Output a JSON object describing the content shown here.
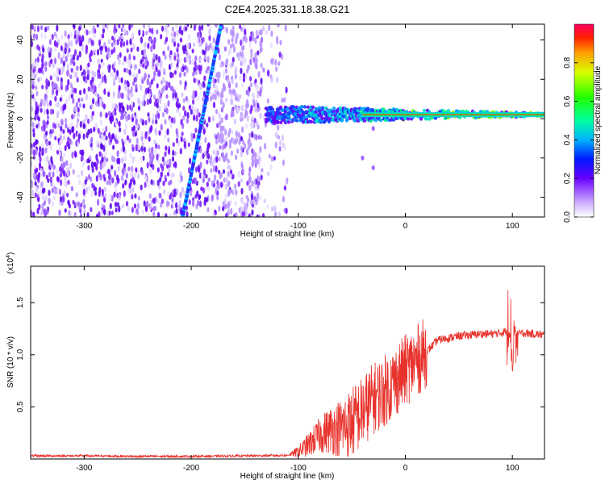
{
  "title": "C2E4.2025.331.18.38.G21",
  "chart_data": [
    {
      "type": "heatmap",
      "name": "spectrogram",
      "title": "C2E4.2025.331.18.38.G21",
      "xlabel": "Height of straight line (km)",
      "ylabel": "Frequency (Hz)",
      "xlim": [
        -350,
        130
      ],
      "ylim": [
        -50,
        48
      ],
      "x_ticks": [
        -300,
        -200,
        -100,
        0,
        100
      ],
      "x_tick_labels": [
        "-300",
        "-200",
        "-100",
        "0",
        "100"
      ],
      "y_ticks": [
        -40,
        -20,
        0,
        20,
        40
      ],
      "y_tick_labels": [
        "-40",
        "-20",
        "0",
        "20",
        "40"
      ],
      "colorbar": {
        "label": "Normalized spectral amplitude",
        "range": [
          0.0,
          1.0
        ],
        "ticks": [
          0.0,
          0.2,
          0.4,
          0.6,
          0.8
        ],
        "tick_labels": [
          "0.0",
          "0.2",
          "0.4",
          "0.6",
          "0.8"
        ]
      },
      "features": {
        "noise_region_x": [
          -350,
          -110
        ],
        "diagonal_streak": {
          "x_start": -208,
          "y_start": -50,
          "x_end": -172,
          "y_end": 48
        },
        "carrier_line": {
          "x_start": -130,
          "x_end": 130,
          "freq_hz": 2
        }
      }
    },
    {
      "type": "line",
      "name": "snr",
      "xlabel": "Height of straight line (km)",
      "ylabel": "SNR (10 * v/v)",
      "y_scale_label": "(x10",
      "y_scale_exponent": "4",
      "y_scale_suffix": ")",
      "xlim": [
        -350,
        130
      ],
      "ylim": [
        0,
        18500
      ],
      "x_ticks": [
        -300,
        -200,
        -100,
        0,
        100
      ],
      "x_tick_labels": [
        "-300",
        "-200",
        "-100",
        "0",
        "100"
      ],
      "y_ticks": [
        5000,
        10000,
        15000
      ],
      "y_tick_labels": [
        "0.5",
        "1.0",
        "1.5"
      ],
      "color": "#e8322c",
      "series": [
        {
          "name": "SNR",
          "x": [
            -350,
            -300,
            -250,
            -200,
            -150,
            -110,
            -100,
            -90,
            -80,
            -70,
            -60,
            -50,
            -40,
            -30,
            -20,
            -10,
            -5,
            0,
            10,
            20,
            30,
            40,
            50,
            60,
            70,
            80,
            90,
            95,
            98,
            100,
            102,
            105,
            110,
            120,
            130
          ],
          "y": [
            300,
            300,
            250,
            250,
            300,
            350,
            700,
            1400,
            2300,
            2800,
            3000,
            3500,
            4500,
            5800,
            6500,
            7400,
            8000,
            8500,
            9400,
            10300,
            11400,
            11600,
            11800,
            11900,
            12000,
            12000,
            12100,
            12300,
            11800,
            8000,
            12500,
            12000,
            12100,
            12000,
            11900
          ]
        }
      ]
    }
  ]
}
